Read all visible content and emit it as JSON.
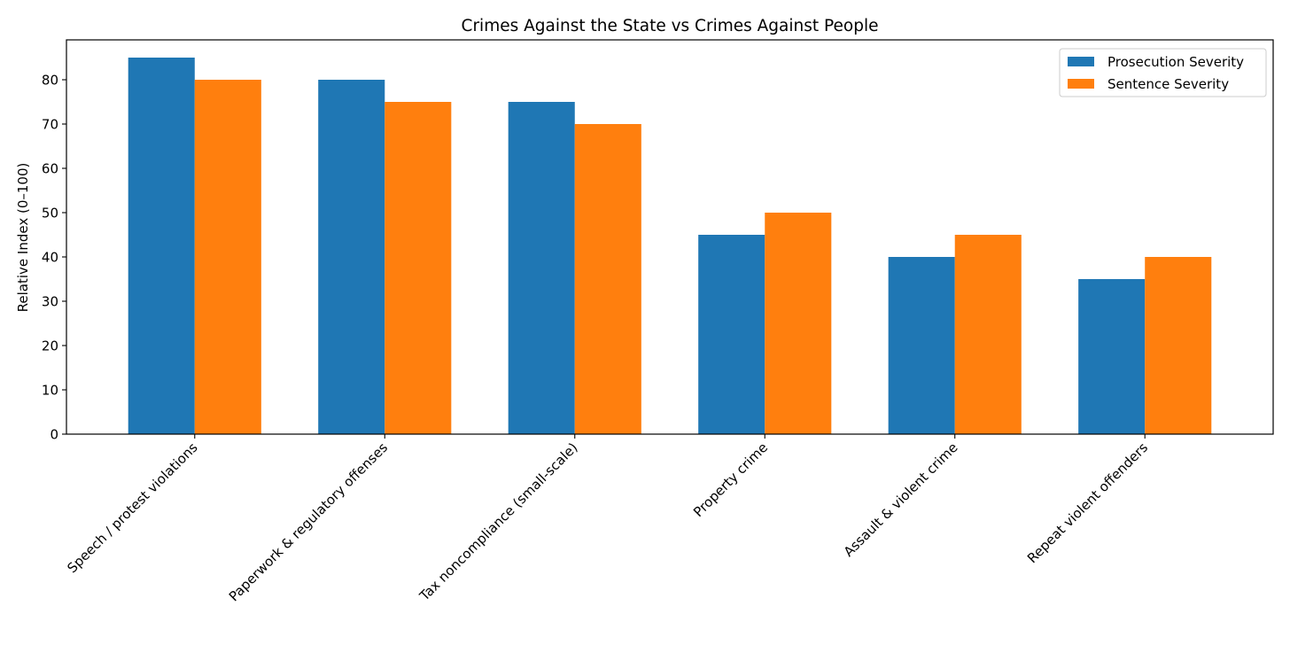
{
  "chart_data": {
    "type": "bar",
    "title": "Crimes Against the State vs Crimes Against People",
    "xlabel": "",
    "ylabel": "Relative Index (0–100)",
    "ylim": [
      0,
      89
    ],
    "yticks": [
      0,
      10,
      20,
      30,
      40,
      50,
      60,
      70,
      80
    ],
    "grid": false,
    "legend_position": "top-right",
    "categories": [
      "Speech / protest violations",
      "Paperwork & regulatory offenses",
      "Tax noncompliance (small-scale)",
      "Property crime",
      "Assault & violent crime",
      "Repeat violent offenders"
    ],
    "series": [
      {
        "name": "Prosecution Severity",
        "color": "#1f77b4",
        "values": [
          85,
          80,
          75,
          45,
          40,
          35
        ]
      },
      {
        "name": "Sentence Severity",
        "color": "#ff7f0e",
        "values": [
          80,
          75,
          70,
          50,
          45,
          40
        ]
      }
    ]
  }
}
